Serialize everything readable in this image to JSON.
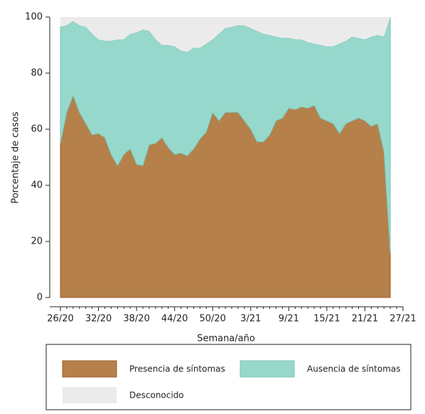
{
  "chart_data": {
    "type": "stacked-area",
    "xlabel": "Semana/año",
    "ylabel": "Porcentaje de casos",
    "categories": [
      "26/20",
      null,
      null,
      null,
      null,
      null,
      "32/20",
      null,
      null,
      null,
      null,
      null,
      "38/20",
      null,
      null,
      null,
      null,
      null,
      "44/20",
      null,
      null,
      null,
      null,
      null,
      "50/20",
      null,
      null,
      null,
      null,
      null,
      "3/21",
      null,
      null,
      null,
      null,
      null,
      "9/21",
      null,
      null,
      null,
      null,
      null,
      "15/21",
      null,
      null,
      null,
      null,
      null,
      "21/21",
      null,
      null,
      null,
      null,
      null,
      "27/21"
    ],
    "ylim": [
      0,
      100
    ],
    "yticks": [
      0,
      20,
      40,
      60,
      80,
      100
    ],
    "series": [
      {
        "name": "Presencia de síntomas",
        "color": "#b5804a",
        "values": [
          55,
          66,
          72,
          66,
          62,
          58,
          58.5,
          57,
          51,
          47,
          51,
          53,
          47.5,
          47,
          54.5,
          55,
          57,
          53.5,
          51,
          51.5,
          50.5,
          53,
          56.5,
          59,
          66,
          63,
          66,
          66,
          66,
          63,
          60,
          55.5,
          55.5,
          58,
          63,
          64,
          67.5,
          67,
          68,
          67.5,
          68.5,
          64,
          63,
          62,
          58.5,
          62,
          63,
          64,
          63,
          61,
          62,
          52,
          16,
          null,
          null
        ]
      },
      {
        "name": "Ausencia de síntomas",
        "color": "#96d8cb",
        "values": [
          41.5,
          31,
          26.5,
          31,
          34.5,
          36,
          33.5,
          34.5,
          40.5,
          45,
          41,
          41,
          47,
          48.5,
          40.5,
          37,
          33,
          36.5,
          38.5,
          36.5,
          37,
          36,
          32.5,
          31.5,
          26,
          31,
          30,
          30.5,
          31,
          34,
          36,
          39.5,
          38.5,
          35.5,
          30,
          28.5,
          25,
          25,
          24,
          23.5,
          22,
          26,
          26.5,
          27.5,
          32,
          29.5,
          30,
          28.5,
          29,
          32,
          31.5,
          41,
          84,
          null,
          null
        ]
      },
      {
        "name": "Desconocido",
        "color": "#ebebeb",
        "values": [
          3.5,
          3,
          1.5,
          3,
          3.5,
          6,
          8,
          8.5,
          8.5,
          8,
          8,
          6,
          5.5,
          4.5,
          5,
          8,
          10,
          10,
          10.5,
          12,
          12.5,
          11,
          11,
          9.5,
          8,
          6,
          4,
          3.5,
          3,
          3,
          4,
          5,
          6,
          6.5,
          7,
          7.5,
          7.5,
          8,
          8,
          9,
          9.5,
          10,
          10.5,
          10.5,
          9.5,
          8.5,
          7,
          7.5,
          8,
          7,
          6.5,
          7,
          0,
          null,
          null
        ]
      }
    ]
  }
}
